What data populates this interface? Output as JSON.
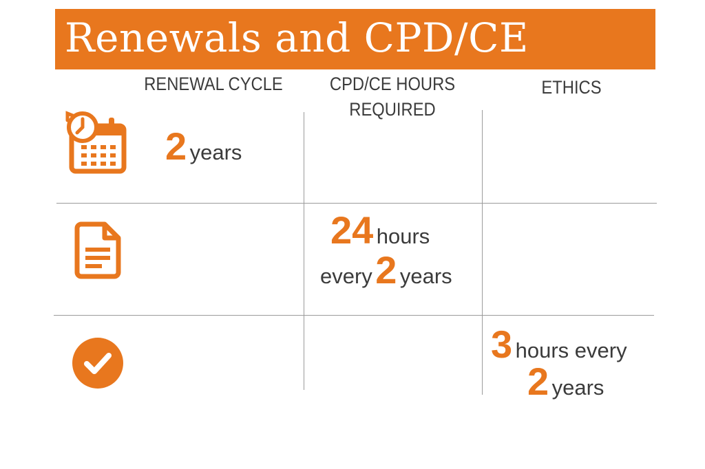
{
  "title": "Renewals and CPD/CE",
  "headers": {
    "renewal_cycle": "RENEWAL CYCLE",
    "cpd_line1": "CPD/CE HOURS",
    "cpd_line2": "REQUIRED",
    "ethics": "ETHICS"
  },
  "renewal": {
    "value": "2",
    "unit": "years"
  },
  "cpd": {
    "value": "24",
    "unit": "hours",
    "every": "every",
    "period_value": "2",
    "period_unit": "years"
  },
  "ethics": {
    "value": "3",
    "text": "hours every",
    "period_value": "2",
    "period_unit": "years"
  },
  "icons": [
    "calendar-clock-icon",
    "document-icon",
    "checkmark-circle-icon"
  ],
  "colors": {
    "accent": "#e8771e",
    "text": "#3b3b3b",
    "grid": "#9a9a9a"
  }
}
